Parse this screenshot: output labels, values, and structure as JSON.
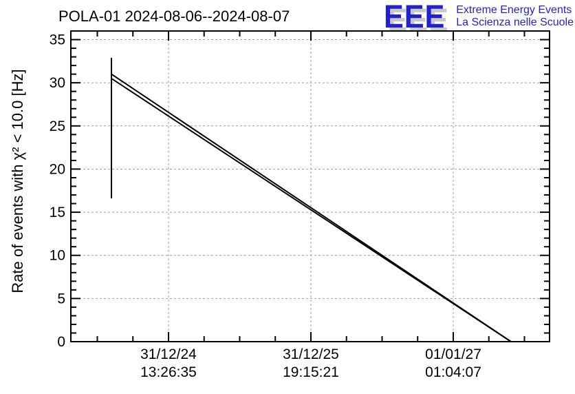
{
  "logo": {
    "acronym": "EEE",
    "line1": "Extreme Energy Events",
    "line2": "La Scienza nelle Scuole",
    "accent_color": "#2222cc",
    "shadow_color": "#c8c8c8"
  },
  "chart_data": {
    "type": "line",
    "title": "POLA-01 2024-08-06--2024-08-07",
    "ylabel": "Rate of events with χ² < 10.0 [Hz]",
    "xlabel": "",
    "ylim": [
      0,
      36
    ],
    "y_major_ticks": [
      0,
      5,
      10,
      15,
      20,
      25,
      30,
      35
    ],
    "y_minor_step": 1,
    "grid": "dashed gray at major ticks, both axes",
    "legend": "none",
    "axis_color": "#000000",
    "grid_color": "#9e9e9e",
    "line_color": "#000000",
    "x_unit": "axis_fraction",
    "x_ticks": [
      {
        "frac": 0.204,
        "label_date": "31/12/24",
        "label_time": "13:26:35"
      },
      {
        "frac": 0.5014,
        "label_date": "31/12/25",
        "label_time": "19:15:21"
      },
      {
        "frac": 0.7989,
        "label_date": "01/01/27",
        "label_time": "01:04:07"
      }
    ],
    "x_minor_start_frac": 0.0553,
    "x_minor_step_frac": 0.074353,
    "series": [
      {
        "name": "rate-burst-spike",
        "type": "vline",
        "x": 0.0848,
        "y_from": 16.6,
        "y_to": 32.9
      },
      {
        "name": "rate-trend-upper",
        "type": "line",
        "points": [
          [
            0.0848,
            31.0
          ],
          [
            0.9195,
            0.0
          ]
        ]
      },
      {
        "name": "rate-trend-lower",
        "type": "line",
        "points": [
          [
            0.0848,
            30.5
          ],
          [
            0.9195,
            0.0
          ]
        ]
      }
    ]
  }
}
